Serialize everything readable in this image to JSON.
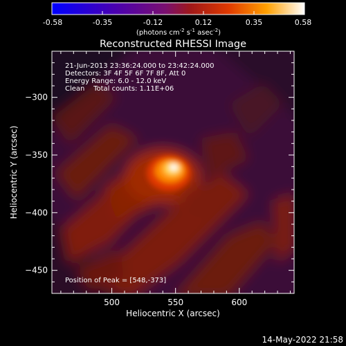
{
  "chart_data": {
    "type": "heatmap",
    "title": "Reconstructed RHESSI Image",
    "xlabel": "Heliocentric X (arcsec)",
    "ylabel": "Heliocentric Y (arcsec)",
    "xlim": [
      453,
      643
    ],
    "ylim": [
      -470,
      -260
    ],
    "x_ticks": [
      500,
      550,
      600
    ],
    "y_ticks": [
      -300,
      -350,
      -400,
      -450
    ],
    "colorbar": {
      "min": -0.58,
      "max": 0.58,
      "ticks": [
        "-0.58",
        "-0.35",
        "-0.12",
        "0.12",
        "0.35",
        "0.58"
      ],
      "label_main": "(photons cm",
      "label_exp1": "-2",
      "label_mid1": " s",
      "label_exp2": "-1",
      "label_mid2": " asec",
      "label_exp3": "-2",
      "label_end": ")"
    },
    "info_lines": [
      "21-Jun-2013 23:36:24.000 to 23:42:24.000",
      "Detectors: 3F 4F 5F 6F 7F 8F, Att 0",
      "Energy Range: 6.0 - 12.0 keV",
      "Clean    Total counts: 1.11E+06"
    ],
    "peak_text": "Position of Peak = [548,-373]",
    "peak": {
      "x": 548,
      "y": -373,
      "value": 0.58
    },
    "timestamp": "14-May-2022 21:58"
  }
}
